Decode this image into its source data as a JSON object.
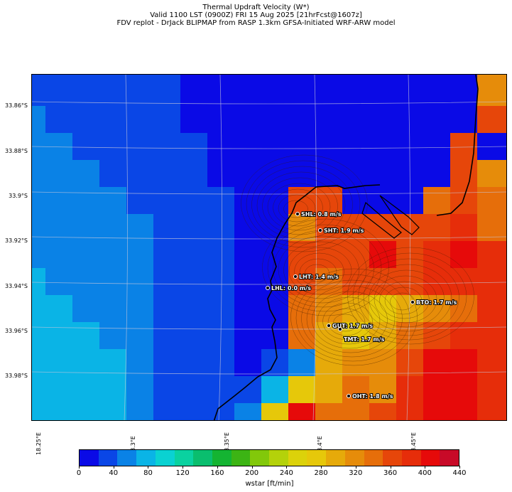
{
  "title": {
    "line1": "Thermal Updraft Velocity (W*)",
    "line2": "Valid 1100 LST (0900Z) FRI 15 Aug 2025 [21hrFcst@1607z]",
    "line3": "FDV replot - DrJack BLIPMAP from RASP 1.3km GFSA-Initiated WRF-ARW model"
  },
  "lat_labels": [
    "33.86°S",
    "33.88°S",
    "33.9°S",
    "33.92°S",
    "33.94°S",
    "33.96°S",
    "33.98°S"
  ],
  "lon_labels": [
    "18.25°E",
    "18.3°E",
    "18.35°E",
    "18.4°E",
    "18.45°E"
  ],
  "sites": [
    {
      "code": "SHL",
      "label": "SHL: 0.8 m/s",
      "value_ms": 0.8
    },
    {
      "code": "SHT",
      "label": "SHT: 1.9 m/s",
      "value_ms": 1.9
    },
    {
      "code": "LHT",
      "label": "LHT: 1.4 m/s",
      "value_ms": 1.4
    },
    {
      "code": "LHL",
      "label": "LHL: 0.0 m/s",
      "value_ms": 0.0
    },
    {
      "code": "BTO",
      "label": "BTO: 1.7 m/s",
      "value_ms": 1.7
    },
    {
      "code": "GUT",
      "label": "GUT: 1.7 m/s",
      "value_ms": 1.7
    },
    {
      "code": "TMT",
      "label": "TMT: 1.7 m/s",
      "value_ms": 1.7
    },
    {
      "code": "OHT",
      "label": "OHT: 1.8 m/s",
      "value_ms": 1.8
    }
  ],
  "colorbar": {
    "label": "wstar [ft/min]",
    "ticks": [
      "0",
      "40",
      "80",
      "120",
      "160",
      "200",
      "240",
      "280",
      "320",
      "360",
      "400",
      "440"
    ],
    "range": [
      0,
      440
    ],
    "colors": [
      "#0a0ae6",
      "#0a46e6",
      "#0a82e6",
      "#0ab4e6",
      "#0ad2d2",
      "#0ad2a0",
      "#0abe6e",
      "#14b432",
      "#3cb414",
      "#82c80a",
      "#b4d20a",
      "#dcd20a",
      "#e6c80a",
      "#e6aa0a",
      "#e68c0a",
      "#e66e0a",
      "#e6460a",
      "#e62d0a",
      "#e60a0a",
      "#c80a28"
    ]
  },
  "legend_colors": {
    "border": "#000000",
    "gridline": "#c8c8dc"
  }
}
